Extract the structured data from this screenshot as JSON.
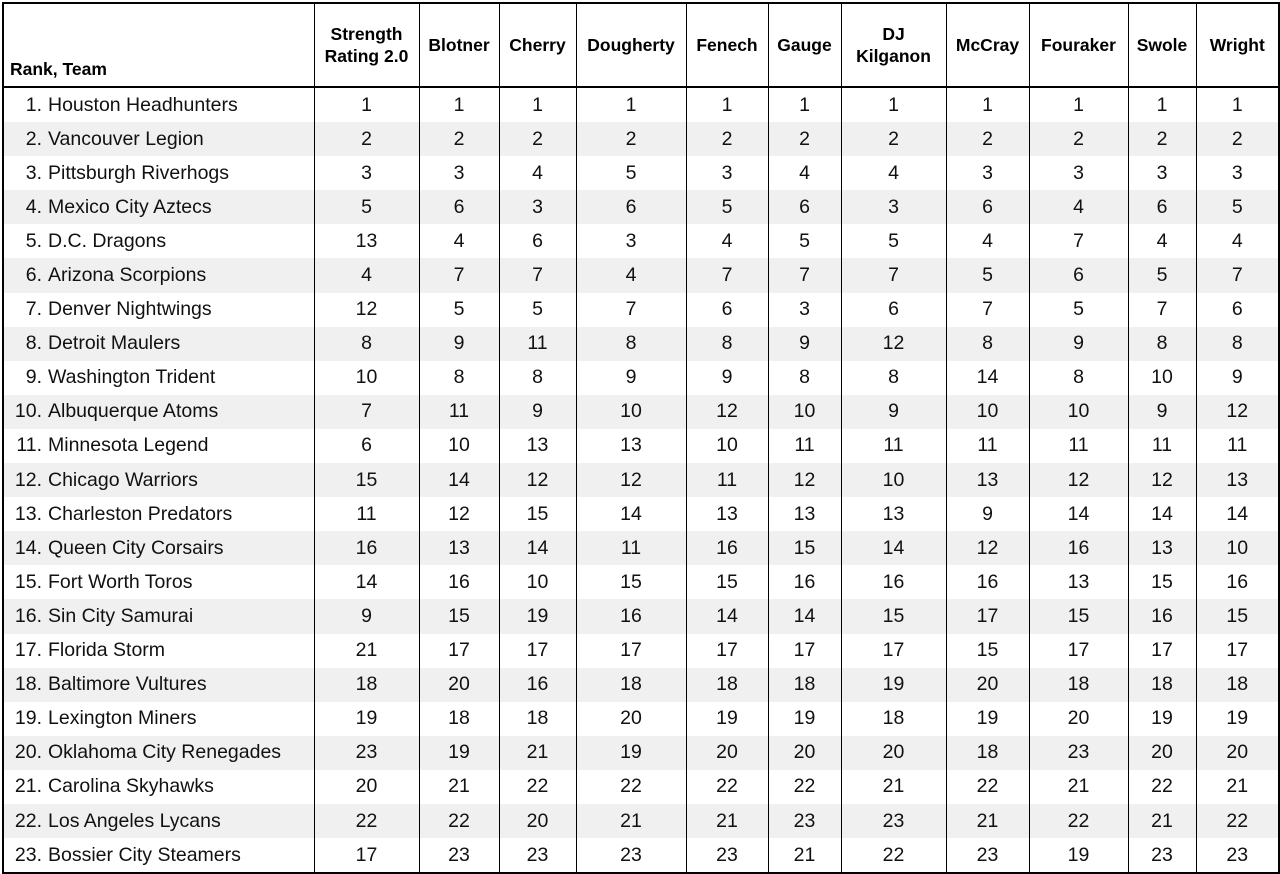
{
  "table": {
    "columns": [
      "Rank, Team",
      "Strength Rating 2.0",
      "Blotner",
      "Cherry",
      "Dougherty",
      "Fenech",
      "Gauge",
      "DJ Kilganon",
      "McCray",
      "Fouraker",
      "Swole",
      "Wright"
    ],
    "rows": [
      {
        "rank": "1.",
        "team": "Houston Headhunters",
        "ratings": [
          1,
          1,
          1,
          1,
          1,
          1,
          1,
          1,
          1,
          1,
          1
        ]
      },
      {
        "rank": "2.",
        "team": "Vancouver Legion",
        "ratings": [
          2,
          2,
          2,
          2,
          2,
          2,
          2,
          2,
          2,
          2,
          2
        ]
      },
      {
        "rank": "3.",
        "team": "Pittsburgh Riverhogs",
        "ratings": [
          3,
          3,
          4,
          5,
          3,
          4,
          4,
          3,
          3,
          3,
          3
        ]
      },
      {
        "rank": "4.",
        "team": "Mexico City Aztecs",
        "ratings": [
          5,
          6,
          3,
          6,
          5,
          6,
          3,
          6,
          4,
          6,
          5
        ]
      },
      {
        "rank": "5.",
        "team": "D.C. Dragons",
        "ratings": [
          13,
          4,
          6,
          3,
          4,
          5,
          5,
          4,
          7,
          4,
          4
        ]
      },
      {
        "rank": "6.",
        "team": "Arizona Scorpions",
        "ratings": [
          4,
          7,
          7,
          4,
          7,
          7,
          7,
          5,
          6,
          5,
          7
        ]
      },
      {
        "rank": "7.",
        "team": "Denver Nightwings",
        "ratings": [
          12,
          5,
          5,
          7,
          6,
          3,
          6,
          7,
          5,
          7,
          6
        ]
      },
      {
        "rank": "8.",
        "team": "Detroit Maulers",
        "ratings": [
          8,
          9,
          11,
          8,
          8,
          9,
          12,
          8,
          9,
          8,
          8
        ]
      },
      {
        "rank": "9.",
        "team": "Washington Trident",
        "ratings": [
          10,
          8,
          8,
          9,
          9,
          8,
          8,
          14,
          8,
          10,
          9
        ]
      },
      {
        "rank": "10.",
        "team": "Albuquerque Atoms",
        "ratings": [
          7,
          11,
          9,
          10,
          12,
          10,
          9,
          10,
          10,
          9,
          12
        ]
      },
      {
        "rank": "11.",
        "team": "Minnesota Legend",
        "ratings": [
          6,
          10,
          13,
          13,
          10,
          11,
          11,
          11,
          11,
          11,
          11
        ]
      },
      {
        "rank": "12.",
        "team": "Chicago Warriors",
        "ratings": [
          15,
          14,
          12,
          12,
          11,
          12,
          10,
          13,
          12,
          12,
          13
        ]
      },
      {
        "rank": "13.",
        "team": "Charleston Predators",
        "ratings": [
          11,
          12,
          15,
          14,
          13,
          13,
          13,
          9,
          14,
          14,
          14
        ]
      },
      {
        "rank": "14.",
        "team": "Queen City Corsairs",
        "ratings": [
          16,
          13,
          14,
          11,
          16,
          15,
          14,
          12,
          16,
          13,
          10
        ]
      },
      {
        "rank": "15.",
        "team": "Fort Worth Toros",
        "ratings": [
          14,
          16,
          10,
          15,
          15,
          16,
          16,
          16,
          13,
          15,
          16
        ]
      },
      {
        "rank": "16.",
        "team": "Sin City Samurai",
        "ratings": [
          9,
          15,
          19,
          16,
          14,
          14,
          15,
          17,
          15,
          16,
          15
        ]
      },
      {
        "rank": "17.",
        "team": "Florida Storm",
        "ratings": [
          21,
          17,
          17,
          17,
          17,
          17,
          17,
          15,
          17,
          17,
          17
        ]
      },
      {
        "rank": "18.",
        "team": "Baltimore Vultures",
        "ratings": [
          18,
          20,
          16,
          18,
          18,
          18,
          19,
          20,
          18,
          18,
          18
        ]
      },
      {
        "rank": "19.",
        "team": "Lexington Miners",
        "ratings": [
          19,
          18,
          18,
          20,
          19,
          19,
          18,
          19,
          20,
          19,
          19
        ]
      },
      {
        "rank": "20.",
        "team": "Oklahoma City Renegades",
        "ratings": [
          23,
          19,
          21,
          19,
          20,
          20,
          20,
          18,
          23,
          20,
          20
        ]
      },
      {
        "rank": "21.",
        "team": "Carolina Skyhawks",
        "ratings": [
          20,
          21,
          22,
          22,
          22,
          22,
          21,
          22,
          21,
          22,
          21
        ]
      },
      {
        "rank": "22.",
        "team": "Los Angeles Lycans",
        "ratings": [
          22,
          22,
          20,
          21,
          21,
          23,
          23,
          21,
          22,
          21,
          22
        ]
      },
      {
        "rank": "23.",
        "team": "Bossier City Steamers",
        "ratings": [
          17,
          23,
          23,
          23,
          23,
          21,
          22,
          23,
          19,
          23,
          23
        ]
      }
    ]
  }
}
